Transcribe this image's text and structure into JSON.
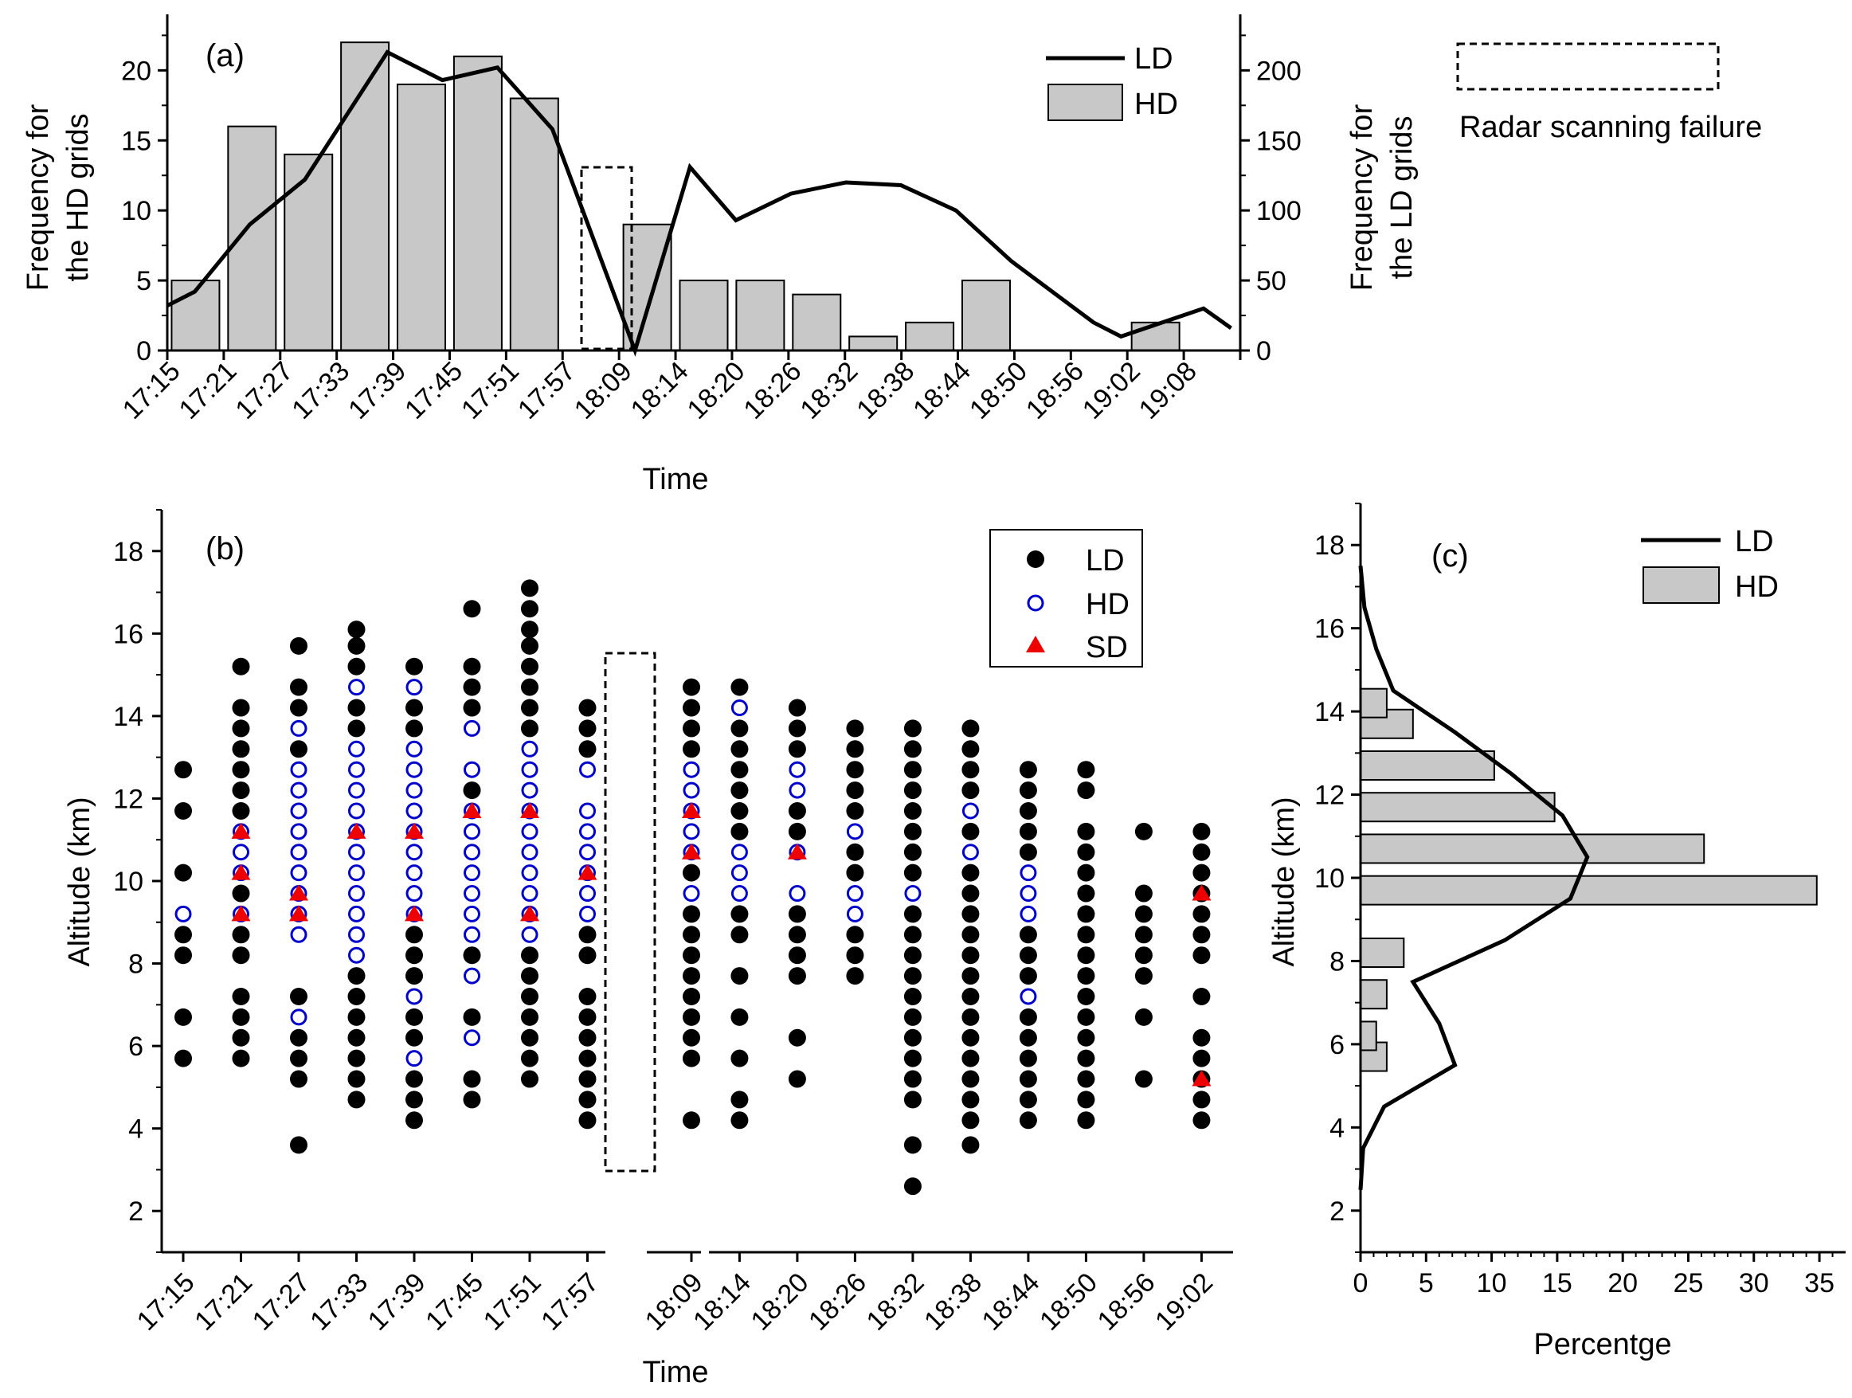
{
  "figure": {
    "legend_failure_label": "Radar scanning failure"
  },
  "chart_data": [
    {
      "panel": "(a)",
      "type": "bar",
      "xlabel": "Time",
      "ylabel_left": "Frequency for the HD grids",
      "ylabel_left_lines": [
        "Frequency for",
        "the HD grids"
      ],
      "ylabel_right": "Frequency for the LD grids",
      "ylabel_right_lines": [
        "Frequency for",
        "the LD grids"
      ],
      "ylim_left": [
        0,
        24
      ],
      "yticks_left": [
        0,
        5,
        10,
        15,
        20
      ],
      "ylim_right": [
        0,
        240
      ],
      "yticks_right": [
        0,
        50,
        100,
        150,
        200
      ],
      "tick_labels": [
        "17:15",
        "17:21",
        "17:27",
        "17:33",
        "17:39",
        "17:45",
        "17:51",
        "17:57",
        "18:09",
        "18:14",
        "18:20",
        "18:26",
        "18:32",
        "18:38",
        "18:44",
        "18:50",
        "18:56",
        "19:02",
        "19:08"
      ],
      "legend": {
        "line": "LD",
        "bar": "HD",
        "placement": "top-right"
      },
      "series": [
        {
          "name": "HD",
          "kind": "bar",
          "axis": "left",
          "x": [
            "17:15",
            "17:21",
            "17:27",
            "17:33",
            "17:39",
            "17:45",
            "17:51",
            "18:09",
            "18:14",
            "18:20",
            "18:26",
            "18:32",
            "18:38",
            "18:44",
            "19:02"
          ],
          "values": [
            5,
            16,
            14,
            22,
            19,
            21,
            18,
            9,
            5,
            5,
            4,
            1,
            2,
            5,
            2
          ]
        },
        {
          "name": "LD",
          "kind": "line",
          "axis": "right",
          "x": [
            "17:12",
            "17:15",
            "17:21",
            "17:27",
            "17:36",
            "17:42",
            "17:48",
            "17:54",
            "18:03",
            "18:09",
            "18:14",
            "18:20",
            "18:26",
            "18:32",
            "18:38",
            "18:44",
            "18:53",
            "18:56",
            "19:05",
            "19:08"
          ],
          "values": [
            32,
            42,
            90,
            122,
            213,
            193,
            202,
            158,
            0,
            131,
            93,
            112,
            120,
            118,
            100,
            64,
            20,
            10,
            30,
            16
          ]
        }
      ],
      "failure_interval": [
        "17:57",
        "18:09"
      ]
    },
    {
      "panel": "(b)",
      "type": "scatter",
      "xlabel": "Time",
      "ylabel": "Altitude (km)",
      "ylim": [
        1,
        19
      ],
      "yticks": [
        2,
        4,
        6,
        8,
        10,
        12,
        14,
        16,
        18
      ],
      "times": [
        "17:15",
        "17:21",
        "17:27",
        "17:33",
        "17:39",
        "17:45",
        "17:51",
        "17:57",
        "18:09",
        "18:14",
        "18:20",
        "18:26",
        "18:32",
        "18:38",
        "18:44",
        "18:50",
        "18:56",
        "19:02"
      ],
      "legend": [
        "LD",
        "HD",
        "SD"
      ],
      "legend_placement": "top-right",
      "failure_interval": [
        "17:57",
        "18:09"
      ],
      "columns": [
        {
          "time": "17:15",
          "LD": [
            5.7,
            6.7,
            8.2,
            8.7,
            10.2,
            11.7,
            12.7
          ],
          "HD": [
            9.2
          ],
          "SD": []
        },
        {
          "time": "17:21",
          "LD": [
            5.7,
            6.2,
            6.7,
            7.2,
            8.2,
            8.7,
            9.7,
            11.7,
            12.2,
            12.7,
            13.2,
            13.7,
            14.2,
            15.2
          ],
          "HD": [
            9.2,
            10.2,
            10.7,
            11.2
          ],
          "SD": [
            9.2,
            10.2,
            11.2
          ]
        },
        {
          "time": "17:27",
          "LD": [
            3.6,
            5.2,
            5.7,
            6.2,
            7.2,
            13.2,
            14.2,
            14.7,
            15.7
          ],
          "HD": [
            6.7,
            8.7,
            9.2,
            9.7,
            10.2,
            10.7,
            11.2,
            11.7,
            12.2,
            12.7,
            13.7
          ],
          "SD": [
            9.2,
            9.7
          ]
        },
        {
          "time": "17:33",
          "LD": [
            4.7,
            5.2,
            5.7,
            6.2,
            6.7,
            7.2,
            7.7,
            13.7,
            14.2,
            15.2,
            15.7,
            16.1
          ],
          "HD": [
            8.2,
            8.7,
            9.2,
            9.7,
            10.2,
            10.7,
            11.2,
            11.7,
            12.2,
            12.7,
            13.2,
            14.7
          ],
          "SD": [
            11.2
          ]
        },
        {
          "time": "17:39",
          "LD": [
            4.2,
            4.7,
            5.2,
            6.2,
            6.7,
            7.7,
            8.2,
            8.7,
            13.7,
            14.2,
            15.2
          ],
          "HD": [
            5.7,
            7.2,
            9.2,
            9.7,
            10.2,
            10.7,
            11.2,
            11.7,
            12.2,
            12.7,
            13.2,
            14.7
          ],
          "SD": [
            9.2,
            11.2
          ]
        },
        {
          "time": "17:45",
          "LD": [
            4.7,
            5.2,
            6.7,
            8.2,
            12.2,
            14.2,
            14.7,
            15.2,
            16.6
          ],
          "HD": [
            6.2,
            7.7,
            8.7,
            9.2,
            9.7,
            10.2,
            10.7,
            11.2,
            11.7,
            12.7,
            13.7
          ],
          "SD": [
            11.7
          ]
        },
        {
          "time": "17:51",
          "LD": [
            5.2,
            5.7,
            6.2,
            6.7,
            7.2,
            7.7,
            8.2,
            13.7,
            14.2,
            14.7,
            15.2,
            15.7,
            16.1,
            16.6,
            17.1
          ],
          "HD": [
            8.7,
            9.2,
            9.7,
            10.2,
            10.7,
            11.2,
            11.7,
            12.2,
            12.7,
            13.2
          ],
          "SD": [
            9.2,
            11.7
          ]
        },
        {
          "time": "17:57",
          "LD": [
            4.2,
            4.7,
            5.2,
            5.7,
            6.2,
            6.7,
            7.2,
            8.2,
            8.7,
            13.2,
            13.7,
            14.2
          ],
          "HD": [
            9.2,
            9.7,
            10.2,
            10.7,
            11.2,
            11.7,
            12.7
          ],
          "SD": [
            10.2
          ]
        },
        {
          "time": "18:09",
          "LD": [
            4.2,
            5.7,
            6.2,
            6.7,
            7.2,
            7.7,
            8.2,
            8.7,
            9.2,
            10.2,
            13.2,
            13.7,
            14.2,
            14.7
          ],
          "HD": [
            9.7,
            10.7,
            11.2,
            11.7,
            12.2,
            12.7
          ],
          "SD": [
            10.7,
            11.7
          ]
        },
        {
          "time": "18:14",
          "LD": [
            4.2,
            4.7,
            5.7,
            6.7,
            7.7,
            8.7,
            9.2,
            11.2,
            11.7,
            12.2,
            12.7,
            13.2,
            13.7,
            14.7
          ],
          "HD": [
            9.7,
            10.2,
            10.7,
            14.2
          ],
          "SD": []
        },
        {
          "time": "18:20",
          "LD": [
            5.2,
            6.2,
            7.7,
            8.2,
            8.7,
            9.2,
            11.2,
            11.7,
            13.2,
            13.7,
            14.2
          ],
          "HD": [
            9.7,
            10.7,
            12.2,
            12.7
          ],
          "SD": [
            10.7
          ]
        },
        {
          "time": "18:26",
          "LD": [
            7.7,
            8.2,
            8.7,
            10.2,
            10.7,
            11.7,
            12.2,
            12.7,
            13.2,
            13.7
          ],
          "HD": [
            9.2,
            9.7,
            11.2
          ],
          "SD": []
        },
        {
          "time": "18:32",
          "LD": [
            2.6,
            3.6,
            4.7,
            5.2,
            5.7,
            6.2,
            6.7,
            7.2,
            7.7,
            8.2,
            8.7,
            9.2,
            10.2,
            10.7,
            11.2,
            11.7,
            12.2,
            12.7,
            13.2,
            13.7
          ],
          "HD": [
            9.7
          ],
          "SD": []
        },
        {
          "time": "18:38",
          "LD": [
            3.6,
            4.2,
            4.7,
            5.2,
            5.7,
            6.2,
            6.7,
            7.2,
            7.7,
            8.2,
            8.7,
            9.2,
            9.7,
            10.2,
            11.2,
            12.2,
            12.7,
            13.2,
            13.7
          ],
          "HD": [
            10.7,
            11.7
          ],
          "SD": []
        },
        {
          "time": "18:44",
          "LD": [
            4.2,
            4.7,
            5.2,
            5.7,
            6.2,
            6.7,
            7.7,
            8.2,
            8.7,
            10.7,
            11.2,
            11.7,
            12.2,
            12.7
          ],
          "HD": [
            7.2,
            9.2,
            9.7,
            10.2
          ],
          "SD": []
        },
        {
          "time": "18:50",
          "LD": [
            4.2,
            4.7,
            5.2,
            5.7,
            6.2,
            6.7,
            7.2,
            7.7,
            8.2,
            8.7,
            9.2,
            9.7,
            10.2,
            10.7,
            11.2,
            12.2,
            12.7
          ],
          "HD": [],
          "SD": []
        },
        {
          "time": "18:56",
          "LD": [
            5.2,
            6.7,
            7.7,
            8.2,
            8.7,
            9.2,
            9.7,
            11.2
          ],
          "HD": [],
          "SD": []
        },
        {
          "time": "19:02",
          "LD": [
            4.2,
            4.7,
            5.2,
            5.7,
            6.2,
            7.2,
            8.2,
            8.7,
            9.2,
            9.7,
            10.2,
            10.7,
            11.2
          ],
          "HD": [],
          "SD": [
            5.2,
            9.7
          ]
        }
      ]
    },
    {
      "panel": "(c)",
      "type": "bar",
      "orientation": "horizontal",
      "xlabel": "Percentge",
      "ylabel": "Altitude (km)",
      "xlim": [
        0,
        37
      ],
      "xticks": [
        0,
        5,
        10,
        15,
        20,
        25,
        30,
        35
      ],
      "ylim": [
        1,
        19
      ],
      "yticks": [
        2,
        4,
        6,
        8,
        10,
        12,
        14,
        16,
        18
      ],
      "legend": {
        "line": "LD",
        "bar": "HD",
        "placement": "top-right"
      },
      "series": [
        {
          "name": "HD",
          "kind": "bar",
          "altitude": [
            5.7,
            6.2,
            7.2,
            8.2,
            9.7,
            10.7,
            11.7,
            12.7,
            13.7,
            14.2
          ],
          "values": [
            2,
            1.2,
            2,
            3.3,
            34.8,
            26.2,
            14.8,
            10.2,
            4,
            2
          ]
        },
        {
          "name": "LD",
          "kind": "line",
          "altitude": [
            2.5,
            3.5,
            4.5,
            5.5,
            6.5,
            7.5,
            8.5,
            9.5,
            10.5,
            11.5,
            12.5,
            13.5,
            14.5,
            15.5,
            16.5,
            17.5
          ],
          "values": [
            0,
            0.2,
            1.8,
            7.2,
            6,
            4,
            11,
            16,
            17.3,
            15.4,
            11.5,
            7.2,
            2.5,
            1.2,
            0.3,
            0
          ]
        }
      ]
    }
  ]
}
